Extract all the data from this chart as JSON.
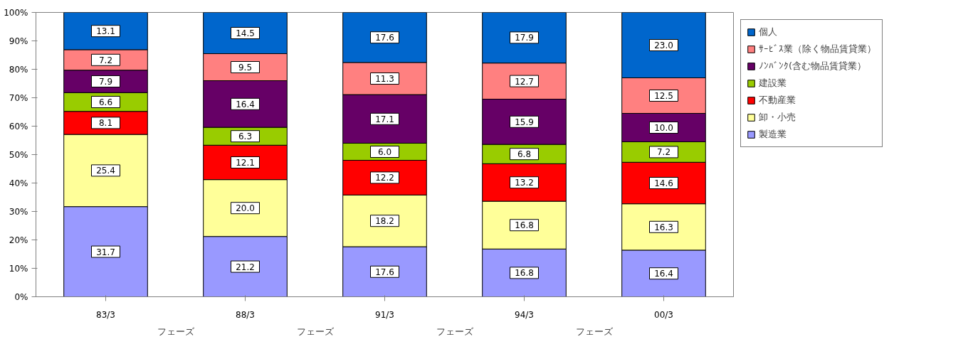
{
  "chart_data": {
    "type": "bar",
    "stacked": true,
    "categories": [
      "83/3",
      "88/3",
      "91/3",
      "94/3",
      "00/3"
    ],
    "series": [
      {
        "name": "製造業",
        "color": "#9999ff",
        "values": [
          31.7,
          21.2,
          17.6,
          16.8,
          16.4
        ],
        "value_labels": [
          "31.7",
          "21.2",
          "17.6",
          "16.8",
          "16.4"
        ]
      },
      {
        "name": "卸・小売",
        "color": "#ffff99",
        "values": [
          25.4,
          20.0,
          18.2,
          16.8,
          16.3
        ],
        "value_labels": [
          "25.4",
          "20.0",
          "18.2",
          "16.8",
          "16.3"
        ]
      },
      {
        "name": "不動産業",
        "color": "#ff0000",
        "values": [
          8.1,
          12.1,
          12.2,
          13.2,
          14.6
        ],
        "value_labels": [
          "8.1",
          "12.1",
          "12.2",
          "13.2",
          "14.6"
        ]
      },
      {
        "name": "建設業",
        "color": "#99cc00",
        "values": [
          6.6,
          6.3,
          6.0,
          6.8,
          7.2
        ],
        "value_labels": [
          "6.6",
          "6.3",
          "6.0",
          "6.8",
          "7.2"
        ]
      },
      {
        "name": "ﾉﾝﾊﾞﾝｸ(含む物品賃貸業）",
        "color": "#660066",
        "values": [
          7.9,
          16.4,
          17.1,
          15.9,
          10.0
        ],
        "value_labels": [
          "7.9",
          "16.4",
          "17.1",
          "15.9",
          "10.0"
        ]
      },
      {
        "name": "ｻｰﾋﾞｽ業（除く物品賃貸業）",
        "color": "#ff8080",
        "values": [
          7.2,
          9.5,
          11.3,
          12.7,
          12.5
        ],
        "value_labels": [
          "7.2",
          "9.5",
          "11.3",
          "12.7",
          "12.5"
        ]
      },
      {
        "name": "個人",
        "color": "#0066cc",
        "values": [
          13.1,
          14.5,
          17.6,
          17.9,
          23.0
        ],
        "value_labels": [
          "13.1",
          "14.5",
          "17.6",
          "17.9",
          "23.0"
        ]
      }
    ],
    "ylim": [
      0,
      100
    ],
    "yticks": [
      {
        "value": 0,
        "label": "0%"
      },
      {
        "value": 10,
        "label": "10%"
      },
      {
        "value": 20,
        "label": "20%"
      },
      {
        "value": 30,
        "label": "30%"
      },
      {
        "value": 40,
        "label": "40%"
      },
      {
        "value": 50,
        "label": "50%"
      },
      {
        "value": 60,
        "label": "60%"
      },
      {
        "value": 70,
        "label": "70%"
      },
      {
        "value": 80,
        "label": "80%"
      },
      {
        "value": 90,
        "label": "90%"
      },
      {
        "value": 100,
        "label": "100%"
      }
    ],
    "annotations": [
      "フェーズ",
      "フェーズ",
      "フェーズ",
      "フェーズ"
    ],
    "grid": false,
    "legend": "right"
  }
}
